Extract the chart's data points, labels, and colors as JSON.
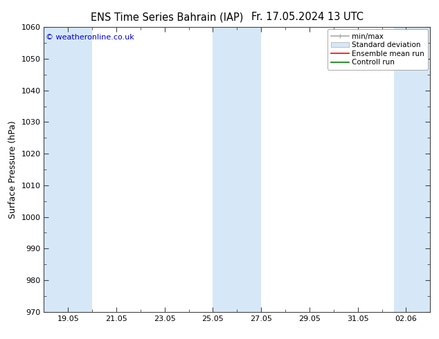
{
  "title_left": "ENS Time Series Bahrain (IAP)",
  "title_right": "Fr. 17.05.2024 13 UTC",
  "ylabel": "Surface Pressure (hPa)",
  "ylim": [
    970,
    1060
  ],
  "ytick_step": 10,
  "copyright": "© weatheronline.co.uk",
  "copyright_color": "#0000cc",
  "background_color": "#ffffff",
  "plot_bg_color": "#ffffff",
  "band_color": "#d6e8f7",
  "band_positions": [
    {
      "start": 0.0,
      "end": 2.0
    },
    {
      "start": 7.0,
      "end": 9.0
    },
    {
      "start": 14.5,
      "end": 16.0
    }
  ],
  "xlim": [
    0,
    16.0
  ],
  "xtick_labels": [
    "19.05",
    "21.05",
    "23.05",
    "25.05",
    "27.05",
    "29.05",
    "31.05",
    "02.06"
  ],
  "xtick_positions": [
    1,
    3,
    5,
    7,
    9,
    11,
    13,
    15
  ],
  "legend_labels": [
    "min/max",
    "Standard deviation",
    "Ensemble mean run",
    "Controll run"
  ],
  "legend_colors": [
    "#aaaaaa",
    "#cce0f0",
    "#ff0000",
    "#008000"
  ],
  "title_fontsize": 10.5,
  "axis_label_fontsize": 9,
  "tick_fontsize": 8,
  "copyright_fontsize": 8,
  "spine_color": "#444444"
}
